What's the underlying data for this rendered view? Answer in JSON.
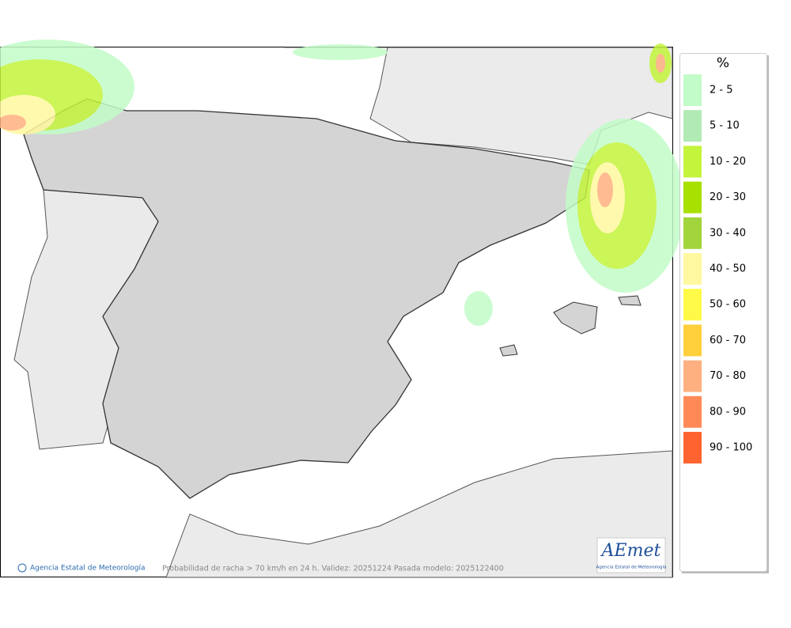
{
  "map": {
    "caption": "Probabilidad de racha > 70 km/h en 24 h. Validez: 20251224 Pasada modelo: 2025122400",
    "credit": "Agencia Estatal de Meteorología",
    "logo": {
      "name": "AEmet",
      "subtitle": "Agencia Estatal de Meteorología"
    }
  },
  "legend": {
    "title": "%",
    "items": [
      {
        "label": "2 - 5",
        "color": "#c2fcc8"
      },
      {
        "label": "5 - 10",
        "color": "#b2eab4"
      },
      {
        "label": "10 - 20",
        "color": "#c4f43c"
      },
      {
        "label": "20 - 30",
        "color": "#a8e000"
      },
      {
        "label": "30 - 40",
        "color": "#a2d43c"
      },
      {
        "label": "40 - 50",
        "color": "#fff8a0"
      },
      {
        "label": "50 - 60",
        "color": "#fffa48"
      },
      {
        "label": "60 - 70",
        "color": "#ffd03c"
      },
      {
        "label": "70 - 80",
        "color": "#ffb080"
      },
      {
        "label": "80 - 90",
        "color": "#ff8a58"
      },
      {
        "label": "90 - 100",
        "color": "#ff6430"
      }
    ]
  }
}
